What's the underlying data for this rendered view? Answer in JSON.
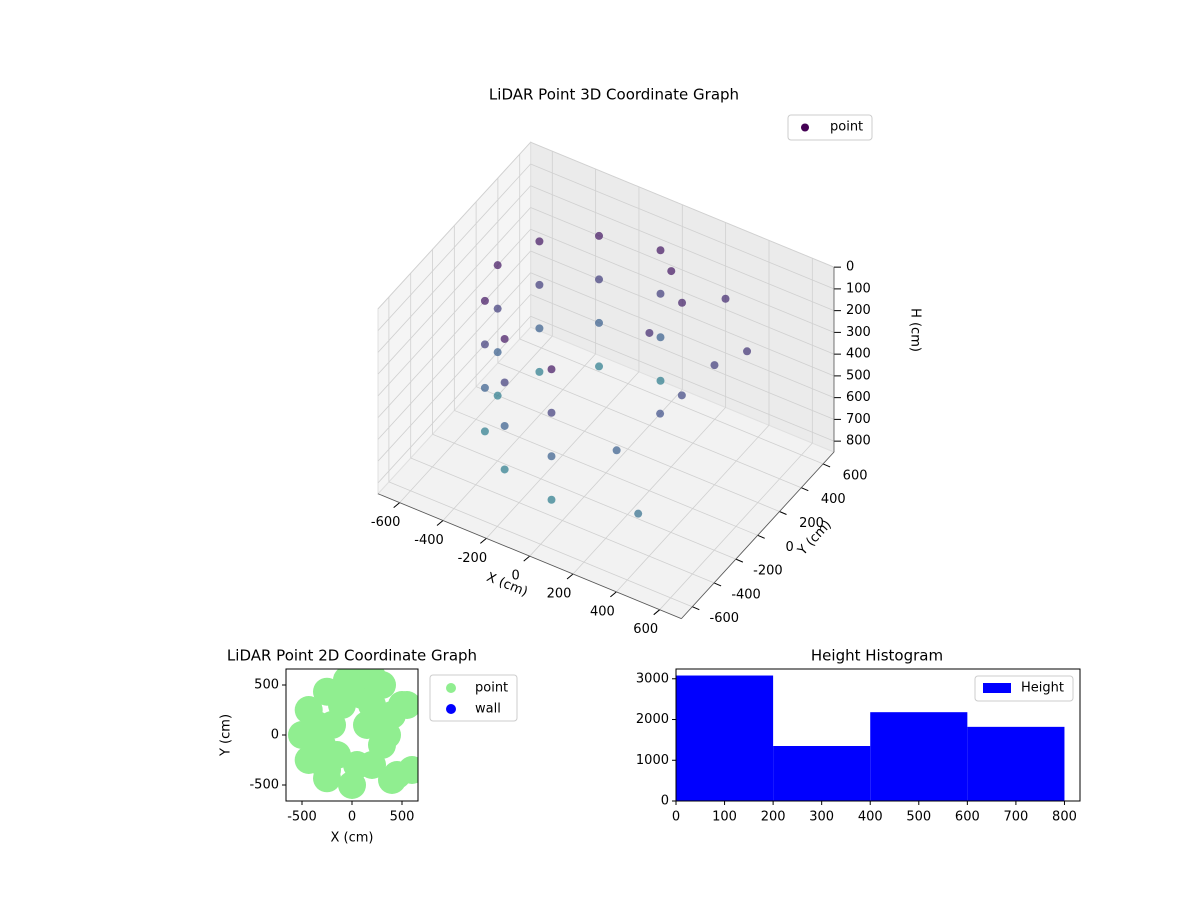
{
  "chart_data": [
    {
      "type": "scatter3d",
      "title": "LiDAR Point 3D Coordinate Graph",
      "xlabel": "X (cm)",
      "ylabel": "Y (cm)",
      "zlabel": "H (cm)",
      "xlim": [
        -700,
        700
      ],
      "ylim": [
        -700,
        700
      ],
      "zlim": [
        0,
        850
      ],
      "xticks": [
        -600,
        -400,
        -200,
        0,
        200,
        400,
        600
      ],
      "yticks": [
        -600,
        -400,
        -200,
        0,
        200,
        400,
        600
      ],
      "zticks": [
        0,
        100,
        200,
        300,
        400,
        500,
        600,
        700,
        800
      ],
      "z_inverted": true,
      "colormap": "viridis",
      "legend": "upper right",
      "series": [
        {
          "name": "point",
          "color": "#440154",
          "x": [
            0,
            -250,
            -433,
            -500,
            -433,
            -250,
            0,
            0,
            -250,
            -433,
            -500,
            -433,
            -250,
            0,
            0,
            -250,
            -433,
            -500,
            -433,
            -250,
            0,
            0,
            -250,
            -433,
            -500,
            -433,
            -250,
            0,
            100,
            200,
            300,
            400,
            500,
            300,
            200,
            400,
            150,
            350
          ],
          "y": [
            500,
            433,
            250,
            0,
            -250,
            -433,
            -500,
            500,
            433,
            250,
            0,
            -250,
            -433,
            -500,
            500,
            433,
            250,
            0,
            -250,
            -433,
            -500,
            500,
            433,
            250,
            0,
            -250,
            -433,
            -500,
            400,
            300,
            500,
            200,
            300,
            -100,
            -300,
            -500,
            100,
            0
          ],
          "z": [
            100,
            100,
            100,
            100,
            100,
            100,
            100,
            300,
            300,
            300,
            300,
            300,
            300,
            300,
            500,
            500,
            500,
            500,
            500,
            500,
            500,
            700,
            700,
            700,
            700,
            700,
            700,
            700,
            100,
            150,
            200,
            300,
            250,
            400,
            500,
            600,
            200,
            350
          ]
        }
      ]
    },
    {
      "type": "scatter",
      "title": "LiDAR Point 2D Coordinate Graph",
      "xlabel": "X (cm)",
      "ylabel": "Y (cm)",
      "xlim": [
        -660,
        660
      ],
      "ylim": [
        -660,
        660
      ],
      "xticks": [
        -500,
        0,
        500
      ],
      "yticks": [
        -500,
        0,
        500
      ],
      "legend": "outside right",
      "series": [
        {
          "name": "point",
          "color": "#90ee90",
          "x": [
            0,
            -250,
            -433,
            -500,
            -433,
            -250,
            0,
            -100,
            -200,
            -300,
            -350,
            -150,
            -250,
            50,
            100,
            200,
            300,
            400,
            500,
            300,
            200,
            400,
            150,
            350,
            100,
            -50,
            200,
            550,
            600,
            450
          ],
          "y": [
            500,
            433,
            250,
            0,
            -250,
            -433,
            -500,
            300,
            100,
            -100,
            100,
            -200,
            -350,
            -300,
            400,
            300,
            500,
            200,
            300,
            -100,
            -300,
            -450,
            100,
            0,
            600,
            550,
            580,
            300,
            -350,
            -400
          ]
        },
        {
          "name": "wall",
          "color": "#0000ff",
          "x": [],
          "y": []
        }
      ]
    },
    {
      "type": "histogram",
      "title": "Height Histogram",
      "bins": [
        0,
        200,
        400,
        600,
        800
      ],
      "values": [
        3080,
        1350,
        2180,
        1820
      ],
      "color": "#0000ff",
      "legend_label": "Height",
      "legend": "upper right",
      "xlim": [
        0,
        832
      ],
      "ylim": [
        0,
        3240
      ],
      "xticks": [
        0,
        100,
        200,
        300,
        400,
        500,
        600,
        700,
        800
      ],
      "yticks": [
        0,
        1000,
        2000,
        3000
      ]
    }
  ]
}
